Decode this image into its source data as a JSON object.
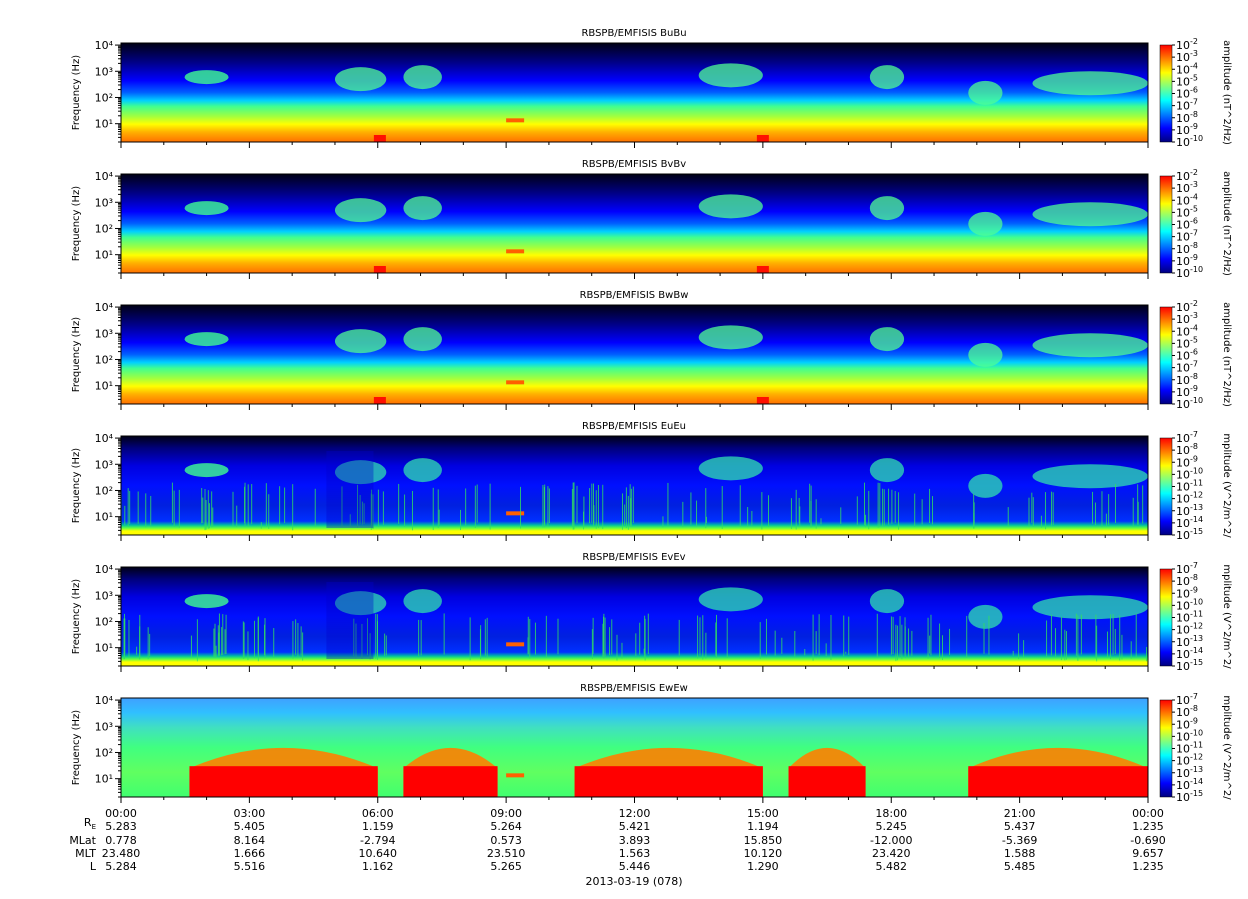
{
  "chart_data": {
    "type": "heatmap",
    "panels": [
      {
        "title": "RBSPB/EMFISIS  BuBu",
        "ylabel": "Frequency (Hz)",
        "colorbar_label": "amplitude (nT^2/Hz)",
        "colorbar_ticks": [
          "10-2",
          "10-3",
          "10-4",
          "10-5",
          "10-6",
          "10-7",
          "10-8",
          "10-9",
          "10-10"
        ],
        "ylim": [
          2,
          12000
        ],
        "yscale": "log",
        "yticks": [
          "10⁴",
          "10³",
          "10²",
          "10¹"
        ],
        "kind": "B"
      },
      {
        "title": "RBSPB/EMFISIS  BvBv",
        "ylabel": "Frequency (Hz)",
        "colorbar_label": "amplitude (nT^2/Hz)",
        "colorbar_ticks": [
          "10-2",
          "10-3",
          "10-4",
          "10-5",
          "10-6",
          "10-7",
          "10-8",
          "10-9",
          "10-10"
        ],
        "ylim": [
          2,
          12000
        ],
        "yscale": "log",
        "yticks": [
          "10⁴",
          "10³",
          "10²",
          "10¹"
        ],
        "kind": "B"
      },
      {
        "title": "RBSPB/EMFISIS  BwBw",
        "ylabel": "Frequency (Hz)",
        "colorbar_label": "amplitude (nT^2/Hz)",
        "colorbar_ticks": [
          "10-2",
          "10-3",
          "10-4",
          "10-5",
          "10-6",
          "10-7",
          "10-8",
          "10-9",
          "10-10"
        ],
        "ylim": [
          2,
          12000
        ],
        "yscale": "log",
        "yticks": [
          "10⁴",
          "10³",
          "10²",
          "10¹"
        ],
        "kind": "B"
      },
      {
        "title": "RBSPB/EMFISIS  EuEu",
        "ylabel": "Frequency (Hz)",
        "colorbar_label": "mplitude (V^2/m^2/",
        "colorbar_ticks": [
          "10-7",
          "10-8",
          "10-9",
          "10-10",
          "10-11",
          "10-12",
          "10-13",
          "10-14",
          "10-15"
        ],
        "ylim": [
          2,
          12000
        ],
        "yscale": "log",
        "yticks": [
          "10⁴",
          "10³",
          "10²",
          "10¹"
        ],
        "kind": "E"
      },
      {
        "title": "RBSPB/EMFISIS  EvEv",
        "ylabel": "Frequency (Hz)",
        "colorbar_label": "mplitude (V^2/m^2/",
        "colorbar_ticks": [
          "10-7",
          "10-8",
          "10-9",
          "10-10",
          "10-11",
          "10-12",
          "10-13",
          "10-14",
          "10-15"
        ],
        "ylim": [
          2,
          12000
        ],
        "yscale": "log",
        "yticks": [
          "10⁴",
          "10³",
          "10²",
          "10¹"
        ],
        "kind": "E"
      },
      {
        "title": "RBSPB/EMFISIS  EwEw",
        "ylabel": "Frequency (Hz)",
        "colorbar_label": "mplitude (V^2/m^2/",
        "colorbar_ticks": [
          "10-7",
          "10-8",
          "10-9",
          "10-10",
          "10-11",
          "10-12",
          "10-13",
          "10-14",
          "10-15"
        ],
        "ylim": [
          2,
          12000
        ],
        "yscale": "log",
        "yticks": [
          "10⁴",
          "10³",
          "10²",
          "10¹"
        ],
        "kind": "Ew"
      }
    ],
    "x_ticks": [
      "00:00",
      "03:00",
      "06:00",
      "09:00",
      "12:00",
      "15:00",
      "18:00",
      "21:00",
      "00:00"
    ],
    "ephemeris": {
      "row_labels": [
        "RE",
        "MLat",
        "MLT",
        "L"
      ],
      "values": [
        [
          "5.283",
          "5.405",
          "1.159",
          "5.264",
          "5.421",
          "1.194",
          "5.245",
          "5.437",
          "1.235"
        ],
        [
          "0.778",
          "8.164",
          "-2.794",
          "0.573",
          "3.893",
          "15.850",
          "-12.000",
          "-5.369",
          "-0.690"
        ],
        [
          "23.480",
          "1.666",
          "10.640",
          "23.510",
          "1.563",
          "10.120",
          "23.420",
          "1.588",
          "9.657"
        ],
        [
          "5.284",
          "5.516",
          "1.162",
          "5.265",
          "5.446",
          "1.290",
          "5.482",
          "5.485",
          "1.235"
        ]
      ]
    },
    "date_label": "2013-03-19 (078)",
    "colorscale": [
      "#00007f",
      "#0000ff",
      "#007fff",
      "#00ffff",
      "#7fff7f",
      "#ffff00",
      "#ff7f00",
      "#ff0000"
    ]
  }
}
